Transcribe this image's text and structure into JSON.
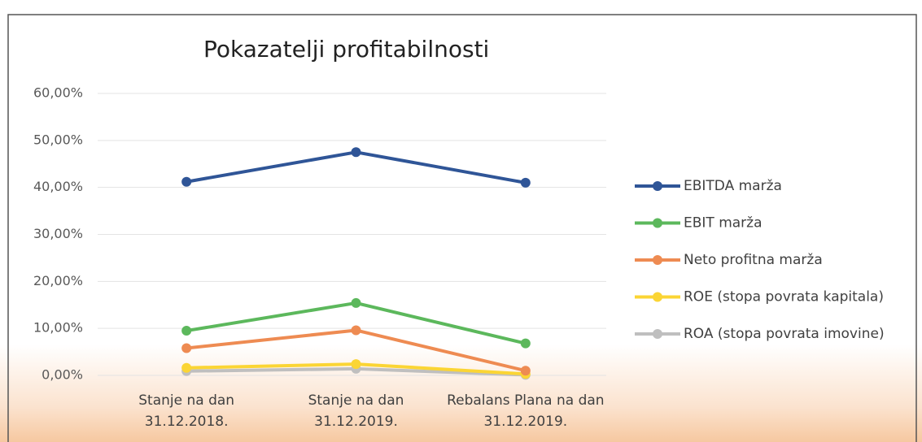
{
  "chart_data": {
    "type": "line",
    "title": "Pokazatelji profitabilnosti",
    "categories": [
      "Stanje na dan 31.12.2018.",
      "Stanje na dan 31.12.2019.",
      "Rebalans Plana na dan 31.12.2019."
    ],
    "series": [
      {
        "name": "EBITDA marža",
        "color": "#2f5597",
        "values": [
          41.2,
          47.5,
          41.0
        ]
      },
      {
        "name": "EBIT marža",
        "color": "#5cb85c",
        "values": [
          9.5,
          15.4,
          6.8
        ]
      },
      {
        "name": "Neto profitna marža",
        "color": "#ee8b52",
        "values": [
          5.8,
          9.6,
          1.0
        ]
      },
      {
        "name": "ROE (stopa povrata kapitala)",
        "color": "#fbd534",
        "values": [
          1.6,
          2.4,
          0.3
        ]
      },
      {
        "name": "ROA (stopa povrata imovine)",
        "color": "#bfbfbf",
        "values": [
          0.9,
          1.4,
          0.1
        ]
      }
    ],
    "ylim": [
      0,
      60
    ],
    "yticks": [
      {
        "value": 0,
        "label": "0,00%"
      },
      {
        "value": 10,
        "label": "10,00%"
      },
      {
        "value": 20,
        "label": "20,00%"
      },
      {
        "value": 30,
        "label": "30,00%"
      },
      {
        "value": 40,
        "label": "40,00%"
      },
      {
        "value": 50,
        "label": "50,00%"
      },
      {
        "value": 60,
        "label": "60,00%"
      }
    ],
    "grid": true,
    "legend": "right"
  }
}
